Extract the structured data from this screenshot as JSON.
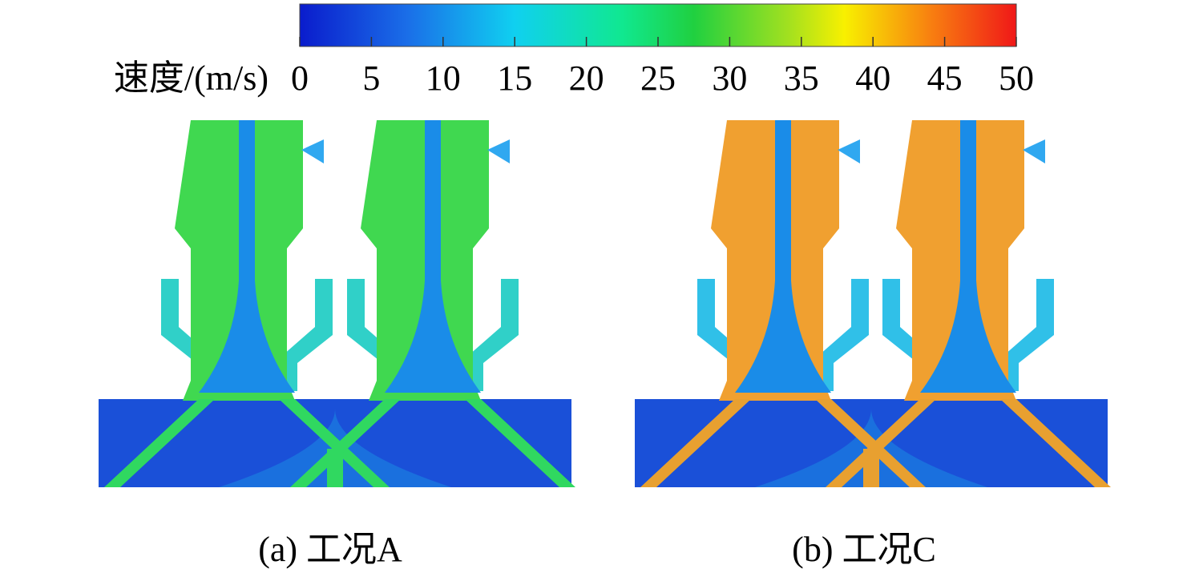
{
  "colorbar": {
    "label": "速度/(m/s)",
    "range": [
      0,
      50
    ],
    "ticks": [
      0,
      5,
      10,
      15,
      20,
      25,
      30,
      35,
      40,
      45,
      50
    ]
  },
  "panels": [
    {
      "caption": "(a) 工况A"
    },
    {
      "caption": "(b) 工况C"
    }
  ]
}
